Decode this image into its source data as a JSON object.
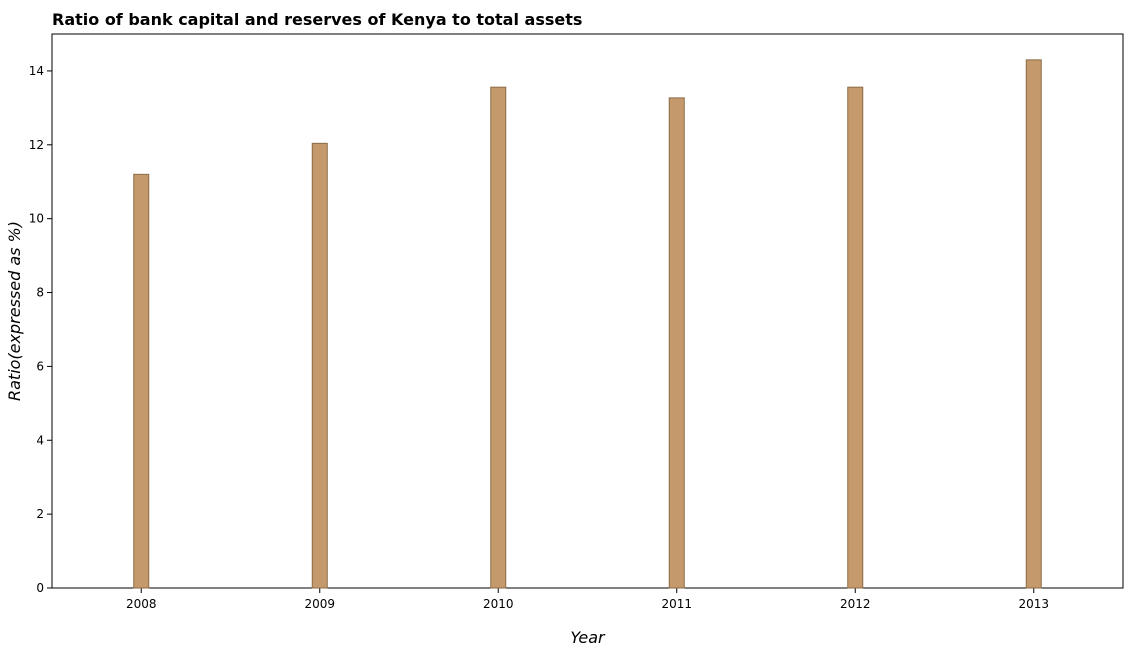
{
  "chart_data": {
    "type": "bar",
    "title": "Ratio of bank capital and reserves of Kenya to total assets",
    "xlabel": "Year",
    "ylabel": "Ratio(expressed as %)",
    "categories": [
      "2008",
      "2009",
      "2010",
      "2011",
      "2012",
      "2013"
    ],
    "values": [
      11.2,
      12.04,
      13.56,
      13.27,
      13.56,
      14.3
    ],
    "ylim": [
      0,
      15
    ],
    "yticks": [
      "0",
      "2",
      "4",
      "6",
      "8",
      "10",
      "12",
      "14"
    ],
    "grid": false,
    "legend": "none",
    "bar_color": "#c49a6c",
    "bar_edge_color": "#8b6b45"
  }
}
